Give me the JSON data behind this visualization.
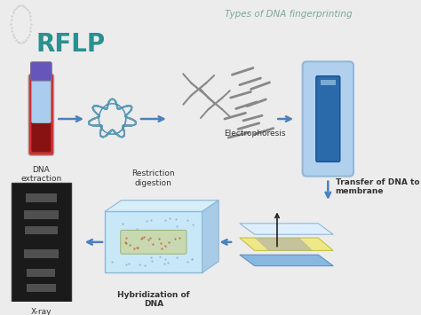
{
  "title": "Types of DNA fingerprinting",
  "subtitle": "RFLP",
  "bg_color": "#ececec",
  "title_color": "#7aaa9a",
  "subtitle_color": "#2a9090",
  "arrow_color": "#4a80c0",
  "labels": {
    "dna_extraction": "DNA\nextraction",
    "restriction": "Restriction\ndigestion",
    "electrophoresis": "Electrophoresis",
    "transfer": "Transfer of DNA to\nmembrane",
    "hybridization": "Hybridization of\nDNA",
    "xray": "X-ray"
  },
  "label_fontsize": 6.5,
  "title_fontsize": 7.5,
  "subtitle_fontsize": 20,
  "tube_cap_color": "#6655bb",
  "tube_body_color": "#cc3333",
  "tube_blood_color": "#881111",
  "tube_serum_color": "#aaccee",
  "gel_outer_color": "#b0d0ee",
  "gel_inner_color": "#2a6aaa",
  "gel_band_color": "#7aaace",
  "xray_bg": "#1a1a1a",
  "xray_band": "#505050",
  "mem_blue": "#88b8e0",
  "mem_yellow": "#eee888",
  "mem_white": "#ddeeff",
  "hyb_color": "#c8e8f8",
  "hyb_strip": "#c8d8b0",
  "fragments_color": "#888888",
  "tangle_color": "#4a90b0"
}
